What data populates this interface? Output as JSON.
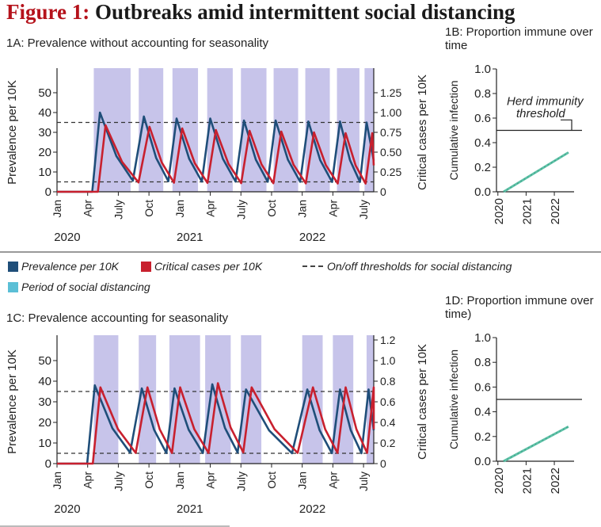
{
  "title": {
    "num": "Figure 1:",
    "rest": " Outbreaks amid intermittent social distancing"
  },
  "panels": {
    "a": "1A: Prevalence without accounting for seasonality",
    "b": "1B: Proportion immune over time",
    "c": "1C: Prevalence accounting for seasonality",
    "d": "1D: Proportion immune over time)"
  },
  "legend": {
    "prevalence": "Prevalence per 10K",
    "critical": "Critical cases per 10K",
    "threshold": "On/off thresholds for social distancing",
    "period": "Period of social distancing"
  },
  "colors": {
    "prevalence": "#1f4e79",
    "critical": "#c8202e",
    "period": "#c7c4ea",
    "immune": "#5fc2a8",
    "period_swatch": "#5bbfd6"
  },
  "chart_data": [
    {
      "id": "1A",
      "type": "line",
      "title": "1A: Prevalence without accounting for seasonality",
      "ylabel": "Prevalence per 10K",
      "y2label": "Critical cases per 10K",
      "ylim": [
        0,
        60
      ],
      "y2lim": [
        0,
        1.5
      ],
      "yticks": [
        "0",
        "10",
        "20",
        "30",
        "40",
        "50"
      ],
      "y2ticks": [
        "0",
        "0.25",
        "0.50",
        "0.75",
        "1.00",
        "1.25"
      ],
      "xlim": [
        0,
        31
      ],
      "xticks": [
        "Jan",
        "Apr",
        "July",
        "Oct",
        "Jan",
        "Apr",
        "July",
        "Oct",
        "Jan",
        "Apr",
        "July"
      ],
      "years": [
        "2020",
        "2021",
        "2022"
      ],
      "thresholds": [
        35,
        5
      ],
      "distancing_periods": [
        [
          3.6,
          7.2
        ],
        [
          8.0,
          10.4
        ],
        [
          11.3,
          13.8
        ],
        [
          14.7,
          17.2
        ],
        [
          18.0,
          20.5
        ],
        [
          21.2,
          23.6
        ],
        [
          24.3,
          26.7
        ],
        [
          27.4,
          29.6
        ],
        [
          30.1,
          31
        ]
      ],
      "peaks": [
        {
          "t": 4.2,
          "prev": 40,
          "crit": 0.84
        },
        {
          "t": 8.5,
          "prev": 38,
          "crit": 0.82
        },
        {
          "t": 11.7,
          "prev": 37,
          "crit": 0.8
        },
        {
          "t": 15.0,
          "prev": 37,
          "crit": 0.78
        },
        {
          "t": 18.3,
          "prev": 36,
          "crit": 0.77
        },
        {
          "t": 21.4,
          "prev": 36,
          "crit": 0.76
        },
        {
          "t": 24.6,
          "prev": 35.5,
          "crit": 0.75
        },
        {
          "t": 27.7,
          "prev": 35.5,
          "crit": 0.74
        },
        {
          "t": 30.3,
          "prev": 35,
          "crit": 0.74
        }
      ]
    },
    {
      "id": "1B",
      "type": "line",
      "title": "1B: Proportion immune over time",
      "ylabel": "Cumulative infection",
      "ylim": [
        0,
        1.0
      ],
      "yticks": [
        "0.0",
        "0.2",
        "0.4",
        "0.6",
        "0.8",
        "1.0"
      ],
      "xticks": [
        "2020",
        "2021",
        "2022"
      ],
      "x": [
        2020.2,
        2022.5
      ],
      "y": [
        0.0,
        0.32
      ],
      "herd_immunity_threshold": 0.5,
      "annotation": [
        "Herd immunity",
        "threshold"
      ]
    },
    {
      "id": "1C",
      "type": "line",
      "title": "1C: Prevalence accounting for seasonality",
      "ylabel": "Prevalence per 10K",
      "y2label": "Critical cases per 10K",
      "ylim": [
        0,
        60
      ],
      "y2lim": [
        0,
        1.2
      ],
      "yticks": [
        "0",
        "10",
        "20",
        "30",
        "40",
        "50"
      ],
      "y2ticks": [
        "0",
        "0.2",
        "0.4",
        "0.6",
        "0.8",
        "1.0",
        "1.2"
      ],
      "xlim": [
        0,
        31
      ],
      "xticks": [
        "Jan",
        "Apr",
        "July",
        "Oct",
        "Jan",
        "Apr",
        "July",
        "Oct",
        "Jan",
        "Apr",
        "July"
      ],
      "years": [
        "2020",
        "2021",
        "2022"
      ],
      "thresholds": [
        35,
        5
      ],
      "distancing_periods": [
        [
          3.6,
          6.0
        ],
        [
          8.0,
          9.7
        ],
        [
          11.0,
          14.0
        ],
        [
          14.5,
          17.0
        ],
        [
          18.0,
          20.0
        ],
        [
          24.0,
          26.0
        ],
        [
          27.0,
          29.0
        ],
        [
          30.3,
          31
        ]
      ],
      "peaks": [
        {
          "t": 3.7,
          "prev": 38,
          "crit": 0.74
        },
        {
          "t": 8.3,
          "prev": 36.5,
          "crit": 0.74
        },
        {
          "t": 11.5,
          "prev": 36.5,
          "crit": 0.74
        },
        {
          "t": 15.2,
          "prev": 38.5,
          "crit": 0.78
        },
        {
          "t": 18.5,
          "prev": 36,
          "crit": 0.74
        },
        {
          "t": 24.5,
          "prev": 36,
          "crit": 0.74
        },
        {
          "t": 27.7,
          "prev": 36,
          "crit": 0.74
        },
        {
          "t": 30.5,
          "prev": 36,
          "crit": 0.74
        }
      ]
    },
    {
      "id": "1D",
      "type": "line",
      "title": "1D: Proportion immune over time)",
      "ylabel": "Cumulative infection",
      "ylim": [
        0,
        1.0
      ],
      "yticks": [
        "0.0",
        "0.2",
        "0.4",
        "0.6",
        "0.8",
        "1.0"
      ],
      "xticks": [
        "2020",
        "2021",
        "2022"
      ],
      "x": [
        2020.2,
        2022.5
      ],
      "y": [
        0.0,
        0.28
      ],
      "herd_immunity_threshold": 0.5
    }
  ]
}
